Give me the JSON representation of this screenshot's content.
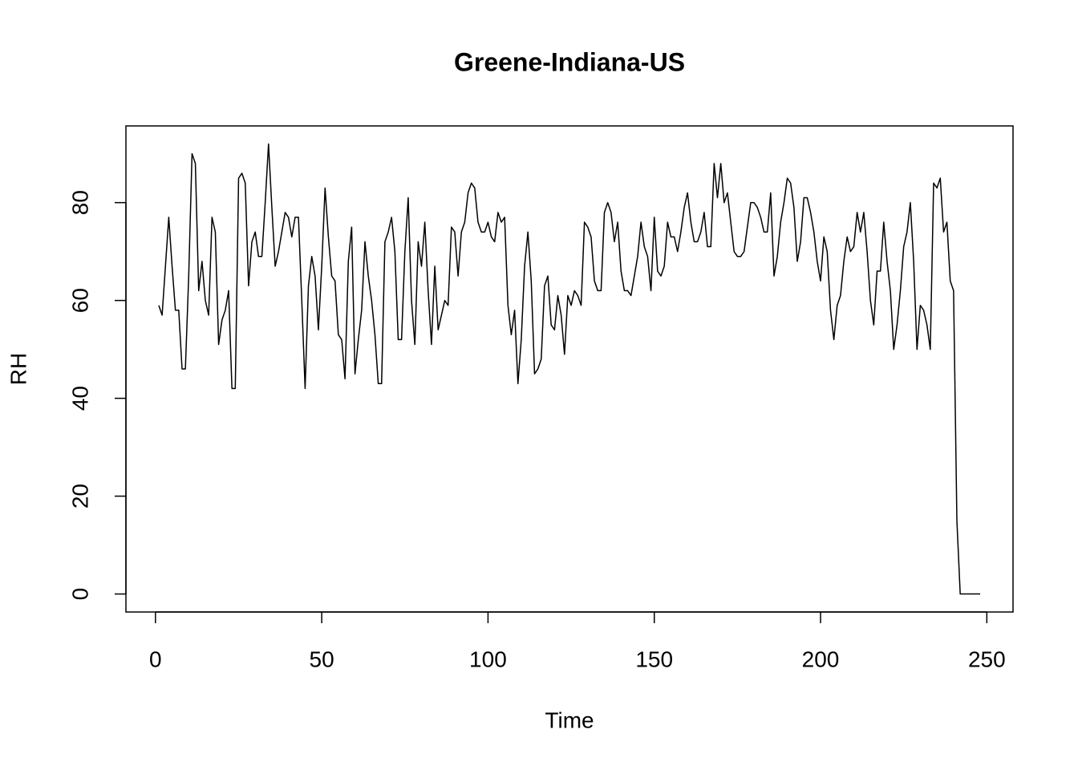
{
  "chart_data": {
    "type": "line",
    "title": "Greene-Indiana-US",
    "x_label": "Time",
    "y_label": "RH",
    "color": "#000000",
    "x": [
      1,
      2,
      3,
      4,
      5,
      6,
      7,
      8,
      9,
      10,
      11,
      12,
      13,
      14,
      15,
      16,
      17,
      18,
      19,
      20,
      21,
      22,
      23,
      24,
      25,
      26,
      27,
      28,
      29,
      30,
      31,
      32,
      33,
      34,
      35,
      36,
      37,
      38,
      39,
      40,
      41,
      42,
      43,
      44,
      45,
      46,
      47,
      48,
      49,
      50,
      51,
      52,
      53,
      54,
      55,
      56,
      57,
      58,
      59,
      60,
      61,
      62,
      63,
      64,
      65,
      66,
      67,
      68,
      69,
      70,
      71,
      72,
      73,
      74,
      75,
      76,
      77,
      78,
      79,
      80,
      81,
      82,
      83,
      84,
      85,
      86,
      87,
      88,
      89,
      90,
      91,
      92,
      93,
      94,
      95,
      96,
      97,
      98,
      99,
      100,
      101,
      102,
      103,
      104,
      105,
      106,
      107,
      108,
      109,
      110,
      111,
      112,
      113,
      114,
      115,
      116,
      117,
      118,
      119,
      120,
      121,
      122,
      123,
      124,
      125,
      126,
      127,
      128,
      129,
      130,
      131,
      132,
      133,
      134,
      135,
      136,
      137,
      138,
      139,
      140,
      141,
      142,
      143,
      144,
      145,
      146,
      147,
      148,
      149,
      150,
      151,
      152,
      153,
      154,
      155,
      156,
      157,
      158,
      159,
      160,
      161,
      162,
      163,
      164,
      165,
      166,
      167,
      168,
      169,
      170,
      171,
      172,
      173,
      174,
      175,
      176,
      177,
      178,
      179,
      180,
      181,
      182,
      183,
      184,
      185,
      186,
      187,
      188,
      189,
      190,
      191,
      192,
      193,
      194,
      195,
      196,
      197,
      198,
      199,
      200,
      201,
      202,
      203,
      204,
      205,
      206,
      207,
      208,
      209,
      210,
      211,
      212,
      213,
      214,
      215,
      216,
      217,
      218,
      219,
      220,
      221,
      222,
      223,
      224,
      225,
      226,
      227,
      228,
      229,
      230,
      231,
      232,
      233,
      234,
      235,
      236,
      237,
      238,
      239,
      240,
      241,
      242,
      243,
      244,
      245,
      246,
      247,
      248
    ],
    "values": [
      59,
      57,
      67,
      77,
      67,
      58,
      58,
      46,
      46,
      65,
      90,
      88,
      62,
      68,
      60,
      57,
      77,
      74,
      51,
      56,
      58,
      62,
      42,
      42,
      85,
      86,
      84,
      63,
      72,
      74,
      69,
      69,
      80,
      92,
      79,
      67,
      70,
      74,
      78,
      77,
      73,
      77,
      77,
      60,
      42,
      63,
      69,
      65,
      54,
      67,
      83,
      73,
      65,
      64,
      53,
      52,
      44,
      68,
      75,
      45,
      52,
      58,
      72,
      65,
      60,
      53,
      43,
      43,
      72,
      74,
      77,
      70,
      52,
      52,
      70,
      81,
      60,
      51,
      72,
      67,
      76,
      62,
      51,
      67,
      54,
      57,
      60,
      59,
      75,
      74,
      65,
      74,
      76,
      82,
      84,
      83,
      76,
      74,
      74,
      76,
      73,
      72,
      78,
      76,
      77,
      59,
      53,
      58,
      43,
      52,
      67,
      74,
      64,
      45,
      46,
      48,
      63,
      65,
      55,
      54,
      61,
      57,
      49,
      61,
      59,
      62,
      61,
      59,
      76,
      75,
      73,
      64,
      62,
      62,
      78,
      80,
      78,
      72,
      76,
      66,
      62,
      62,
      61,
      65,
      69,
      76,
      71,
      69,
      62,
      77,
      66,
      65,
      67,
      76,
      73,
      73,
      70,
      74,
      79,
      82,
      76,
      72,
      72,
      74,
      78,
      71,
      71,
      88,
      81,
      88,
      80,
      82,
      76,
      70,
      69,
      69,
      70,
      75,
      80,
      80,
      79,
      77,
      74,
      74,
      82,
      65,
      69,
      76,
      80,
      85,
      84,
      79,
      68,
      72,
      81,
      81,
      78,
      74,
      68,
      64,
      73,
      70,
      58,
      52,
      59,
      61,
      68,
      73,
      70,
      71,
      78,
      74,
      78,
      70,
      60,
      55,
      66,
      66,
      76,
      68,
      62,
      50,
      55,
      62,
      71,
      74,
      80,
      68,
      50,
      59,
      58,
      55,
      50,
      84,
      83,
      85,
      74,
      76,
      64,
      62,
      15,
      0,
      0,
      0,
      0,
      0,
      0,
      0
    ],
    "xlim": [
      -8.88,
      257.88
    ],
    "ylim": [
      -3.68,
      95.68
    ],
    "xticks": [
      0,
      50,
      100,
      150,
      200,
      250
    ],
    "yticks": [
      0,
      20,
      40,
      60,
      80
    ]
  }
}
